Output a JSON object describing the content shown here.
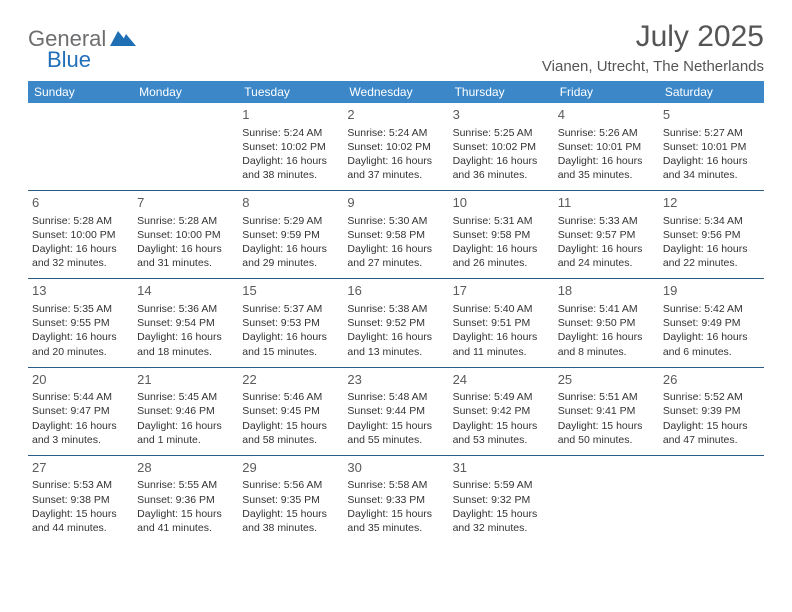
{
  "brand": {
    "text_gray": "General",
    "text_blue": "Blue",
    "triangle_color": "#1f6fb5"
  },
  "title": "July 2025",
  "location": "Vianen, Utrecht, The Netherlands",
  "colors": {
    "header_bg": "#3b87c8",
    "header_text": "#ffffff",
    "row_border": "#2d5c88",
    "text": "#333333",
    "title_text": "#555555"
  },
  "day_headers": [
    "Sunday",
    "Monday",
    "Tuesday",
    "Wednesday",
    "Thursday",
    "Friday",
    "Saturday"
  ],
  "weeks": [
    [
      null,
      null,
      {
        "n": "1",
        "rise": "Sunrise: 5:24 AM",
        "set": "Sunset: 10:02 PM",
        "dl1": "Daylight: 16 hours",
        "dl2": "and 38 minutes."
      },
      {
        "n": "2",
        "rise": "Sunrise: 5:24 AM",
        "set": "Sunset: 10:02 PM",
        "dl1": "Daylight: 16 hours",
        "dl2": "and 37 minutes."
      },
      {
        "n": "3",
        "rise": "Sunrise: 5:25 AM",
        "set": "Sunset: 10:02 PM",
        "dl1": "Daylight: 16 hours",
        "dl2": "and 36 minutes."
      },
      {
        "n": "4",
        "rise": "Sunrise: 5:26 AM",
        "set": "Sunset: 10:01 PM",
        "dl1": "Daylight: 16 hours",
        "dl2": "and 35 minutes."
      },
      {
        "n": "5",
        "rise": "Sunrise: 5:27 AM",
        "set": "Sunset: 10:01 PM",
        "dl1": "Daylight: 16 hours",
        "dl2": "and 34 minutes."
      }
    ],
    [
      {
        "n": "6",
        "rise": "Sunrise: 5:28 AM",
        "set": "Sunset: 10:00 PM",
        "dl1": "Daylight: 16 hours",
        "dl2": "and 32 minutes."
      },
      {
        "n": "7",
        "rise": "Sunrise: 5:28 AM",
        "set": "Sunset: 10:00 PM",
        "dl1": "Daylight: 16 hours",
        "dl2": "and 31 minutes."
      },
      {
        "n": "8",
        "rise": "Sunrise: 5:29 AM",
        "set": "Sunset: 9:59 PM",
        "dl1": "Daylight: 16 hours",
        "dl2": "and 29 minutes."
      },
      {
        "n": "9",
        "rise": "Sunrise: 5:30 AM",
        "set": "Sunset: 9:58 PM",
        "dl1": "Daylight: 16 hours",
        "dl2": "and 27 minutes."
      },
      {
        "n": "10",
        "rise": "Sunrise: 5:31 AM",
        "set": "Sunset: 9:58 PM",
        "dl1": "Daylight: 16 hours",
        "dl2": "and 26 minutes."
      },
      {
        "n": "11",
        "rise": "Sunrise: 5:33 AM",
        "set": "Sunset: 9:57 PM",
        "dl1": "Daylight: 16 hours",
        "dl2": "and 24 minutes."
      },
      {
        "n": "12",
        "rise": "Sunrise: 5:34 AM",
        "set": "Sunset: 9:56 PM",
        "dl1": "Daylight: 16 hours",
        "dl2": "and 22 minutes."
      }
    ],
    [
      {
        "n": "13",
        "rise": "Sunrise: 5:35 AM",
        "set": "Sunset: 9:55 PM",
        "dl1": "Daylight: 16 hours",
        "dl2": "and 20 minutes."
      },
      {
        "n": "14",
        "rise": "Sunrise: 5:36 AM",
        "set": "Sunset: 9:54 PM",
        "dl1": "Daylight: 16 hours",
        "dl2": "and 18 minutes."
      },
      {
        "n": "15",
        "rise": "Sunrise: 5:37 AM",
        "set": "Sunset: 9:53 PM",
        "dl1": "Daylight: 16 hours",
        "dl2": "and 15 minutes."
      },
      {
        "n": "16",
        "rise": "Sunrise: 5:38 AM",
        "set": "Sunset: 9:52 PM",
        "dl1": "Daylight: 16 hours",
        "dl2": "and 13 minutes."
      },
      {
        "n": "17",
        "rise": "Sunrise: 5:40 AM",
        "set": "Sunset: 9:51 PM",
        "dl1": "Daylight: 16 hours",
        "dl2": "and 11 minutes."
      },
      {
        "n": "18",
        "rise": "Sunrise: 5:41 AM",
        "set": "Sunset: 9:50 PM",
        "dl1": "Daylight: 16 hours",
        "dl2": "and 8 minutes."
      },
      {
        "n": "19",
        "rise": "Sunrise: 5:42 AM",
        "set": "Sunset: 9:49 PM",
        "dl1": "Daylight: 16 hours",
        "dl2": "and 6 minutes."
      }
    ],
    [
      {
        "n": "20",
        "rise": "Sunrise: 5:44 AM",
        "set": "Sunset: 9:47 PM",
        "dl1": "Daylight: 16 hours",
        "dl2": "and 3 minutes."
      },
      {
        "n": "21",
        "rise": "Sunrise: 5:45 AM",
        "set": "Sunset: 9:46 PM",
        "dl1": "Daylight: 16 hours",
        "dl2": "and 1 minute."
      },
      {
        "n": "22",
        "rise": "Sunrise: 5:46 AM",
        "set": "Sunset: 9:45 PM",
        "dl1": "Daylight: 15 hours",
        "dl2": "and 58 minutes."
      },
      {
        "n": "23",
        "rise": "Sunrise: 5:48 AM",
        "set": "Sunset: 9:44 PM",
        "dl1": "Daylight: 15 hours",
        "dl2": "and 55 minutes."
      },
      {
        "n": "24",
        "rise": "Sunrise: 5:49 AM",
        "set": "Sunset: 9:42 PM",
        "dl1": "Daylight: 15 hours",
        "dl2": "and 53 minutes."
      },
      {
        "n": "25",
        "rise": "Sunrise: 5:51 AM",
        "set": "Sunset: 9:41 PM",
        "dl1": "Daylight: 15 hours",
        "dl2": "and 50 minutes."
      },
      {
        "n": "26",
        "rise": "Sunrise: 5:52 AM",
        "set": "Sunset: 9:39 PM",
        "dl1": "Daylight: 15 hours",
        "dl2": "and 47 minutes."
      }
    ],
    [
      {
        "n": "27",
        "rise": "Sunrise: 5:53 AM",
        "set": "Sunset: 9:38 PM",
        "dl1": "Daylight: 15 hours",
        "dl2": "and 44 minutes."
      },
      {
        "n": "28",
        "rise": "Sunrise: 5:55 AM",
        "set": "Sunset: 9:36 PM",
        "dl1": "Daylight: 15 hours",
        "dl2": "and 41 minutes."
      },
      {
        "n": "29",
        "rise": "Sunrise: 5:56 AM",
        "set": "Sunset: 9:35 PM",
        "dl1": "Daylight: 15 hours",
        "dl2": "and 38 minutes."
      },
      {
        "n": "30",
        "rise": "Sunrise: 5:58 AM",
        "set": "Sunset: 9:33 PM",
        "dl1": "Daylight: 15 hours",
        "dl2": "and 35 minutes."
      },
      {
        "n": "31",
        "rise": "Sunrise: 5:59 AM",
        "set": "Sunset: 9:32 PM",
        "dl1": "Daylight: 15 hours",
        "dl2": "and 32 minutes."
      },
      null,
      null
    ]
  ]
}
